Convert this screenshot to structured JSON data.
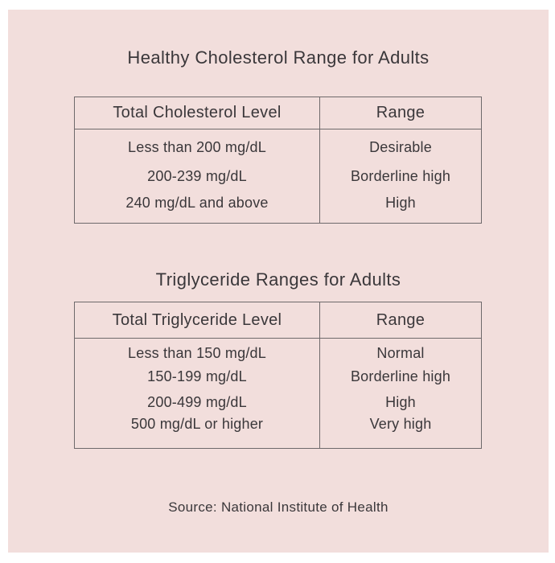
{
  "colors": {
    "page_background": "#ffffff",
    "panel_background": "#f2dedc",
    "text": "#3a373a",
    "table_border": "#6e696b"
  },
  "chart_data": [
    {
      "type": "table",
      "title": "Healthy Cholesterol Range for Adults",
      "columns": [
        "Total Cholesterol Level",
        "Range"
      ],
      "rows": [
        [
          "Less than 200 mg/dL",
          "Desirable"
        ],
        [
          "200-239 mg/dL",
          "Borderline high"
        ],
        [
          "240 mg/dL and above",
          "High"
        ]
      ]
    },
    {
      "type": "table",
      "title": "Triglyceride Ranges for Adults",
      "columns": [
        "Total Triglyceride Level",
        "Range"
      ],
      "rows": [
        [
          "Less than 150 mg/dL",
          "Normal"
        ],
        [
          "150-199 mg/dL",
          "Borderline high"
        ],
        [
          "200-499 mg/dL",
          "High"
        ],
        [
          "500 mg/dL or higher",
          "Very high"
        ]
      ]
    }
  ],
  "footer": {
    "source": "Source: National Institute of Health"
  }
}
